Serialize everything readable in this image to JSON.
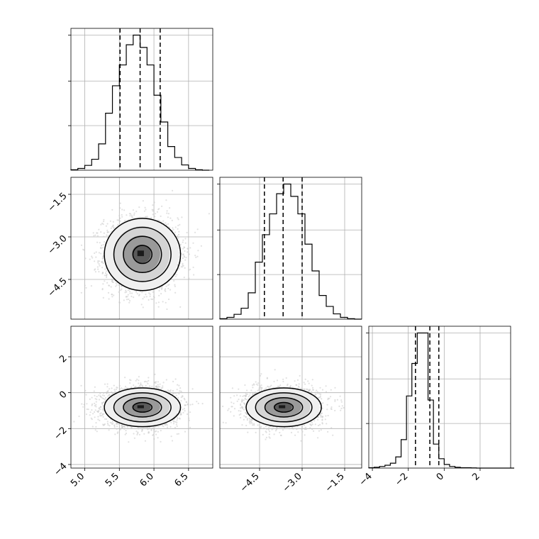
{
  "chart_data": {
    "type": "corner",
    "parameters": [
      "",
      "",
      ""
    ],
    "grid": true,
    "quantiles": [
      0.16,
      0.5,
      0.84
    ],
    "diagonal": [
      {
        "type": "histogram",
        "axis": [
          4.8,
          6.85
        ],
        "quantile_lines": [
          5.51,
          5.8,
          6.09
        ],
        "bins_start": 4.8,
        "bin_width": 0.1,
        "counts": [
          2,
          8,
          22,
          50,
          120,
          260,
          385,
          480,
          572,
          616,
          560,
          480,
          342,
          220,
          108,
          58,
          24,
          8,
          2,
          0
        ]
      },
      {
        "type": "histogram",
        "axis": [
          -5.9,
          -0.9
        ],
        "quantile_lines": [
          -4.33,
          -3.67,
          -3.0
        ],
        "bins_start": -5.9,
        "bin_width": 0.25,
        "counts": [
          2,
          8,
          22,
          50,
          120,
          260,
          385,
          480,
          572,
          616,
          560,
          480,
          342,
          220,
          108,
          58,
          24,
          8,
          2,
          0
        ]
      },
      {
        "type": "histogram",
        "axis": [
          -4.2,
          3.7
        ],
        "quantile_lines": [
          -1.6,
          -0.8,
          -0.3
        ],
        "bins_start": -4.2,
        "bin_width": 0.3,
        "counts": [
          2,
          4,
          8,
          14,
          24,
          55,
          140,
          355,
          515,
          665,
          665,
          335,
          118,
          46,
          18,
          8,
          4,
          2,
          2,
          1,
          0,
          0,
          0,
          0,
          0,
          0,
          0
        ]
      }
    ],
    "panels_2d": [
      {
        "row": 1,
        "col": 0,
        "x_axis": [
          4.8,
          6.85
        ],
        "y_axis": [
          -5.9,
          -0.9
        ],
        "center": [
          5.82,
          -3.6
        ],
        "std": [
          0.27,
          0.65
        ]
      },
      {
        "row": 2,
        "col": 0,
        "x_axis": [
          4.8,
          6.85
        ],
        "y_axis": [
          -4.2,
          3.7
        ],
        "center": [
          5.82,
          -0.8
        ],
        "std": [
          0.27,
          0.55
        ]
      },
      {
        "row": 2,
        "col": 1,
        "x_axis": [
          -5.9,
          -0.9
        ],
        "y_axis": [
          -4.2,
          3.7
        ],
        "center": [
          -3.68,
          -0.8
        ],
        "std": [
          0.65,
          0.55
        ]
      }
    ],
    "x_ticks": [
      [
        "5.0",
        "5.5",
        "6.0",
        "6.5"
      ],
      [
        "-4.5",
        "-3.0",
        "-1.5"
      ],
      [
        "-4",
        "-2",
        "0",
        "2"
      ]
    ],
    "x_tick_values": [
      [
        5.0,
        5.5,
        6.0,
        6.5
      ],
      [
        -4.5,
        -3.0,
        -1.5
      ],
      [
        -4,
        -2,
        0,
        2
      ]
    ],
    "y_ticks": [
      [
        "-1.5",
        "-3.0",
        "-4.5"
      ],
      [
        "2",
        "0",
        "-2",
        "-4"
      ]
    ],
    "y_tick_values": [
      [
        -1.5,
        -3.0,
        -4.5
      ],
      [
        2,
        0,
        -2,
        -4
      ]
    ],
    "colors": {
      "line": "#000000",
      "grid": "#b0b0b0",
      "scatter": "#c8c8c8"
    }
  }
}
